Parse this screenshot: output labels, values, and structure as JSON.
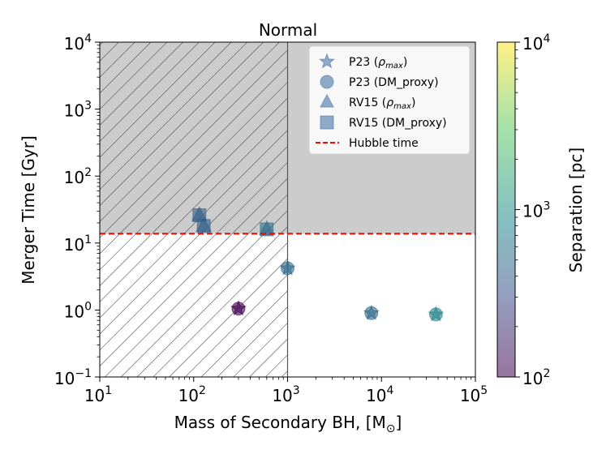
{
  "chart_data": {
    "type": "scatter",
    "title": "Normal",
    "xlabel": "Mass of Secondary BH, [M",
    "xlabel_sub": "⊙",
    "xlabel_close": "]",
    "ylabel": "Merger Time [Gyr]",
    "xscale": "log",
    "yscale": "log",
    "xlim": [
      10,
      100000
    ],
    "ylim": [
      0.1,
      10000
    ],
    "x_ticks": [
      {
        "value": 10,
        "base": "10",
        "exp": "1"
      },
      {
        "value": 100,
        "base": "10",
        "exp": "2"
      },
      {
        "value": 1000,
        "base": "10",
        "exp": "3"
      },
      {
        "value": 10000,
        "base": "10",
        "exp": "4"
      },
      {
        "value": 100000,
        "base": "10",
        "exp": "5"
      }
    ],
    "y_ticks": [
      {
        "value": 0.1,
        "base": "10",
        "exp": "−1"
      },
      {
        "value": 1,
        "base": "10",
        "exp": "0"
      },
      {
        "value": 10,
        "base": "10",
        "exp": "1"
      },
      {
        "value": 100,
        "base": "10",
        "exp": "2"
      },
      {
        "value": 1000,
        "base": "10",
        "exp": "3"
      },
      {
        "value": 10000,
        "base": "10",
        "exp": "4"
      }
    ],
    "regions": {
      "gray_above_hubble_color": "#cccccc",
      "hatch_below_mass": 1000,
      "hatch_color": "#404040"
    },
    "hubble_time": {
      "value": 13.8,
      "label": "Hubble time",
      "color": "#ff0000"
    },
    "colorbar": {
      "label": "Separation [pc]",
      "range": [
        100,
        10000
      ],
      "ticks": [
        {
          "value": 100,
          "base": "10",
          "exp": "2"
        },
        {
          "value": 1000,
          "base": "10",
          "exp": "3"
        },
        {
          "value": 10000,
          "base": "10",
          "exp": "4"
        }
      ],
      "colormap": [
        "#440154",
        "#3b528b",
        "#21918c",
        "#5ec962",
        "#fde725"
      ],
      "alpha": 0.55
    },
    "legend": {
      "position": "upper right",
      "entries": [
        {
          "marker": "star",
          "label": "P23 (",
          "label_math": "ρ",
          "label_sub": "max",
          "label_end": ")"
        },
        {
          "marker": "circle",
          "label": "P23 (DM_proxy)"
        },
        {
          "marker": "triangle",
          "label": "RV15 (",
          "label_math": "ρ",
          "label_sub": "max",
          "label_end": ")"
        },
        {
          "marker": "square",
          "label": "RV15 (DM_proxy)"
        },
        {
          "marker": "dashed-line",
          "label": "Hubble time"
        }
      ],
      "marker_color": "#4a74a8"
    },
    "series": [
      {
        "name": "P23 (ρmax)",
        "marker": "star",
        "points": [
          {
            "x": 300,
            "y": 1.05,
            "sep": 100
          },
          {
            "x": 1000,
            "y": 4.2,
            "sep": 500
          },
          {
            "x": 7800,
            "y": 0.9,
            "sep": 500
          },
          {
            "x": 38000,
            "y": 0.86,
            "sep": 800
          }
        ]
      },
      {
        "name": "P23 (DM_proxy)",
        "marker": "circle",
        "points": [
          {
            "x": 300,
            "y": 1.05,
            "sep": 100
          },
          {
            "x": 1000,
            "y": 4.2,
            "sep": 480
          },
          {
            "x": 7800,
            "y": 0.9,
            "sep": 480
          },
          {
            "x": 38000,
            "y": 0.86,
            "sep": 780
          }
        ]
      },
      {
        "name": "RV15 (ρmax)",
        "marker": "triangle",
        "points": [
          {
            "x": 115,
            "y": 26,
            "sep": 420
          },
          {
            "x": 128,
            "y": 18,
            "sep": 420
          },
          {
            "x": 600,
            "y": 16,
            "sep": 550
          }
        ]
      },
      {
        "name": "RV15 (DM_proxy)",
        "marker": "square",
        "points": [
          {
            "x": 115,
            "y": 26,
            "sep": 400
          },
          {
            "x": 128,
            "y": 18,
            "sep": 400
          },
          {
            "x": 600,
            "y": 16,
            "sep": 530
          }
        ]
      }
    ]
  }
}
